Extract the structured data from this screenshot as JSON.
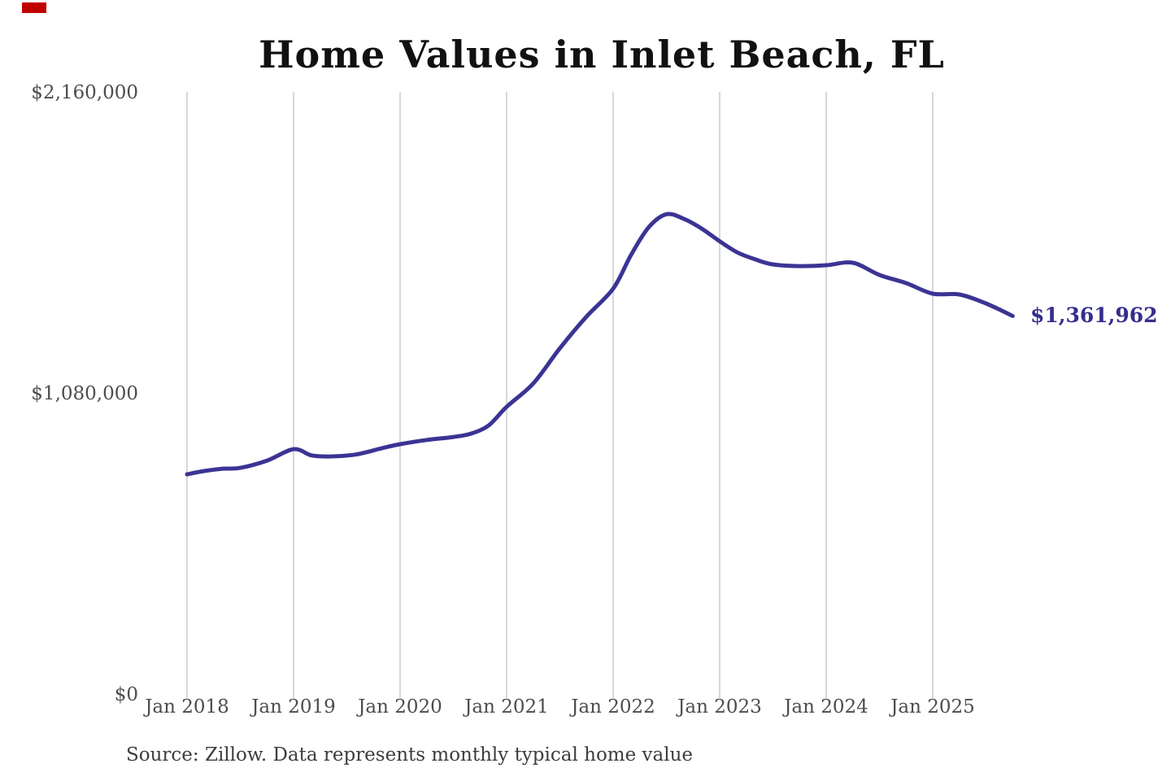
{
  "page": {
    "background": "#ffffff",
    "corner_marker_color": "#c00000"
  },
  "chart_data": {
    "type": "line",
    "title": "Home Values in Inlet Beach, FL",
    "source_note": "Source: Zillow. Data represents monthly typical home value",
    "end_label": "$1,361,962",
    "end_value": 1361962,
    "xlabel": "",
    "ylabel": "",
    "ylim": [
      0,
      2160000
    ],
    "grid": "vertical-only",
    "legend": "none",
    "y_ticks": [
      {
        "label": "$2,160,000",
        "value": 2160000
      },
      {
        "label": "$1,080,000",
        "value": 1080000
      },
      {
        "label": "$0",
        "value": 0
      }
    ],
    "x_ticks": [
      "Jan 2018",
      "Jan 2019",
      "Jan 2020",
      "Jan 2021",
      "Jan 2022",
      "Jan 2023",
      "Jan 2024",
      "Jan 2025"
    ],
    "colors": {
      "line": "#3b3494",
      "grid": "#cccccc",
      "axis_text": "#4d4d4d",
      "title": "#111111",
      "end_label": "#352e8c"
    },
    "series": [
      {
        "name": "Monthly typical home value",
        "start_month": "Jan 2018",
        "month_offsets": [
          0,
          2,
          4,
          6,
          9,
          12,
          14,
          16,
          19,
          22,
          24,
          27,
          30,
          32,
          34,
          36,
          39,
          42,
          45,
          48,
          50,
          52,
          54,
          56,
          58,
          60,
          62,
          64,
          66,
          69,
          72,
          75,
          78,
          81,
          84,
          87,
          90,
          93
        ],
        "values": [
          794000,
          806000,
          814000,
          817000,
          843000,
          884000,
          862000,
          858000,
          865000,
          888000,
          902000,
          917000,
          928000,
          940000,
          970000,
          1036000,
          1120000,
          1246000,
          1360000,
          1460000,
          1580000,
          1680000,
          1727000,
          1710000,
          1675000,
          1630000,
          1590000,
          1565000,
          1547000,
          1541000,
          1544000,
          1553000,
          1509000,
          1480000,
          1442000,
          1439000,
          1407000,
          1361962
        ]
      }
    ]
  }
}
